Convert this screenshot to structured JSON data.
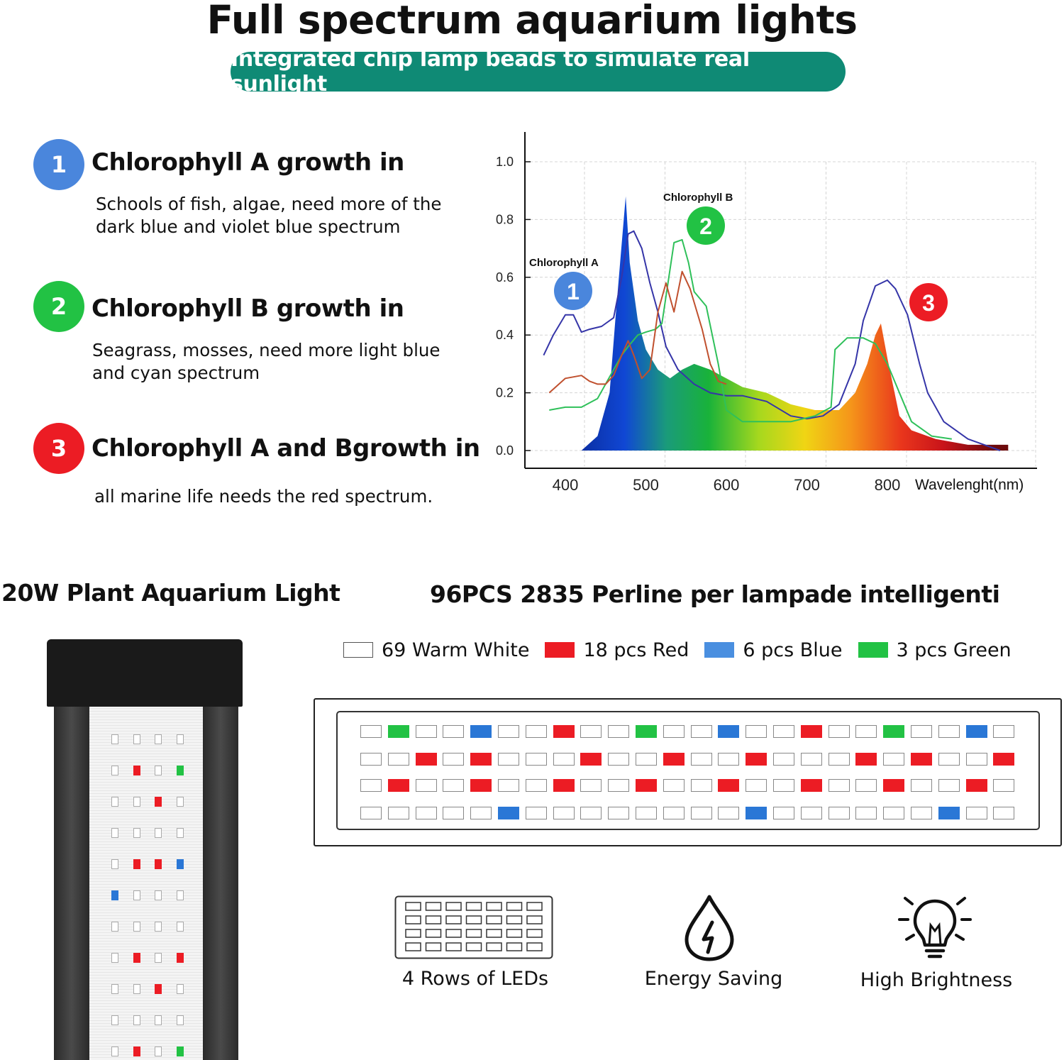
{
  "header": {
    "title": "Full spectrum aquarium lights",
    "subtitle": "Integrated chip lamp beads to simulate real sunlight"
  },
  "features": [
    {
      "number": "1",
      "color": "#4a86dc",
      "heading": "Chlorophyll A growth in",
      "text": "Schools of fish, algae, need more of the\ndark blue and violet blue spectrum"
    },
    {
      "number": "2",
      "color": "#22c244",
      "heading": "Chlorophyll B growth in",
      "text": "Seagrass, mosses, need more light blue\nand cyan spectrum"
    },
    {
      "number": "3",
      "color": "#ec1c24",
      "heading": "Chlorophyll A and Bgrowth in",
      "text": "all marine life needs the red spectrum."
    }
  ],
  "chart_data": {
    "type": "area",
    "xlabel": "Wavelenght(nm)",
    "ylabel": "",
    "xlim": [
      350,
      980
    ],
    "ylim": [
      0,
      1.0
    ],
    "x_ticks": [
      "400",
      "500",
      "600",
      "700",
      "800"
    ],
    "y_ticks": [
      "0.0",
      "0.2",
      "0.4",
      "0.6",
      "0.8",
      "1.0"
    ],
    "grid": true,
    "annotations": [
      {
        "label": "Chlorophyll A",
        "badge": "1",
        "color": "#4a86dc"
      },
      {
        "label": "Chlorophyll B",
        "badge": "2",
        "color": "#22c244"
      },
      {
        "label": "",
        "badge": "3",
        "color": "#ec1c24"
      }
    ],
    "series": [
      {
        "color": "spectrum",
        "x": [
          420,
          440,
          455,
          462,
          468,
          475,
          480,
          490,
          500,
          515,
          530,
          545,
          560,
          580,
          600,
          620,
          650,
          680,
          710,
          740,
          760,
          775,
          785,
          792,
          800,
          815,
          830,
          860,
          900,
          950
        ],
        "y": [
          0.0,
          0.05,
          0.2,
          0.45,
          0.65,
          0.88,
          0.65,
          0.45,
          0.35,
          0.28,
          0.25,
          0.28,
          0.3,
          0.28,
          0.25,
          0.22,
          0.2,
          0.16,
          0.14,
          0.14,
          0.2,
          0.3,
          0.4,
          0.44,
          0.32,
          0.12,
          0.07,
          0.04,
          0.02,
          0.02
        ]
      },
      {
        "color": "#3535a8",
        "x": [
          373,
          385,
          400,
          410,
          420,
          430,
          445,
          460,
          470,
          478,
          485,
          495,
          505,
          515,
          525,
          540,
          560,
          580,
          600,
          620,
          650,
          680,
          700,
          720,
          740,
          760,
          770,
          785,
          800,
          810,
          825,
          840,
          850,
          870,
          900,
          940
        ],
        "y": [
          0.33,
          0.4,
          0.47,
          0.47,
          0.41,
          0.42,
          0.43,
          0.46,
          0.6,
          0.75,
          0.76,
          0.7,
          0.58,
          0.48,
          0.36,
          0.28,
          0.23,
          0.2,
          0.19,
          0.19,
          0.17,
          0.12,
          0.11,
          0.12,
          0.16,
          0.3,
          0.45,
          0.57,
          0.59,
          0.56,
          0.47,
          0.3,
          0.2,
          0.1,
          0.04,
          0.0
        ]
      },
      {
        "color": "#2fc05a",
        "x": [
          380,
          400,
          420,
          440,
          460,
          470,
          478,
          490,
          500,
          512,
          520,
          535,
          545,
          553,
          560,
          575,
          590,
          600,
          620,
          650,
          680,
          710,
          730,
          735,
          750,
          770,
          785,
          800,
          815,
          830,
          855,
          880
        ],
        "y": [
          0.14,
          0.15,
          0.15,
          0.18,
          0.28,
          0.33,
          0.36,
          0.4,
          0.41,
          0.42,
          0.44,
          0.72,
          0.73,
          0.65,
          0.55,
          0.5,
          0.3,
          0.14,
          0.1,
          0.1,
          0.1,
          0.12,
          0.15,
          0.35,
          0.39,
          0.39,
          0.37,
          0.3,
          0.2,
          0.1,
          0.05,
          0.04
        ]
      },
      {
        "color": "#c0502e",
        "x": [
          380,
          400,
          420,
          430,
          440,
          450,
          460,
          470,
          478,
          485,
          495,
          505,
          515,
          525,
          535,
          545,
          555,
          570,
          580,
          590,
          600
        ],
        "y": [
          0.2,
          0.25,
          0.26,
          0.24,
          0.23,
          0.23,
          0.26,
          0.33,
          0.38,
          0.33,
          0.25,
          0.28,
          0.48,
          0.58,
          0.48,
          0.62,
          0.56,
          0.42,
          0.3,
          0.24,
          0.23
        ]
      }
    ]
  },
  "section_left": {
    "heading": "20W Plant Aquarium Light"
  },
  "section_right": {
    "heading": "96PCS 2835 Perline per lampade intelligenti"
  },
  "led_legend": [
    {
      "label": "69 Warm White",
      "color": "#ffffff"
    },
    {
      "label": "18 pcs Red",
      "color": "#ec1c24"
    },
    {
      "label": "6 pcs Blue",
      "color": "#2a77d6"
    },
    {
      "label": "3 pcs Green",
      "color": "#22c244"
    }
  ],
  "led_strip": {
    "rows": [
      "WGWWBWWRWWGWWBWWRWWGWWBW",
      "WWRWRWWWRWWRWWRWWWRWRWWR",
      "WRWWRWWRWWRWWRWWRWWRWWRW",
      "WWWWWBWWWWWWWWBWWWWWWBWW"
    ],
    "colors": {
      "W": "#ffffff",
      "R": "#ec1c24",
      "G": "#22c244",
      "B": "#2a77d6"
    }
  },
  "lamp_rows": [
    "WWWW",
    "WRWG",
    "WWRW",
    "WWWW",
    "WRRB",
    "BWWW",
    "WWWW",
    "WRWR",
    "WWRW",
    "WWWW",
    "WRWG"
  ],
  "icons": [
    {
      "name": "rows-of-leds",
      "label": "4 Rows of LEDs"
    },
    {
      "name": "energy-saving",
      "label": "Energy Saving"
    },
    {
      "name": "high-brightness",
      "label": "High Brightness"
    }
  ]
}
